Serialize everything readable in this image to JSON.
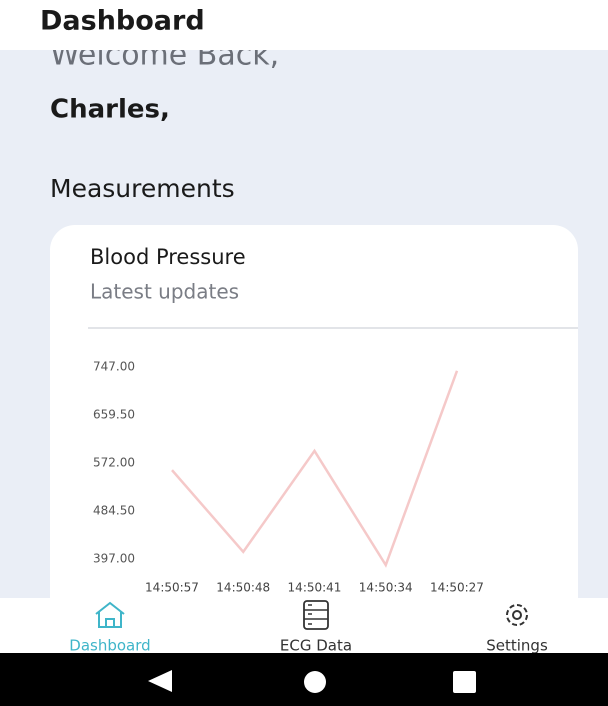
{
  "header": {
    "title": "Dashboard"
  },
  "welcome": {
    "greeting": "Welcome Back,",
    "name": "Charles,"
  },
  "section_title": "Measurements",
  "card": {
    "title": "Blood Pressure",
    "subtitle": "Latest updates"
  },
  "chart_data": {
    "type": "line",
    "categories": [
      "14:50:57",
      "14:50:48",
      "14:50:41",
      "14:50:34",
      "14:50:27"
    ],
    "values": [
      559,
      410,
      594,
      386,
      740
    ],
    "color": "#f5c9c9",
    "ylim": [
      397,
      747
    ],
    "yticks": [
      {
        "value": 397,
        "label": "397.00"
      },
      {
        "value": 484.5,
        "label": "484.50"
      },
      {
        "value": 572,
        "label": "572.00"
      },
      {
        "value": 659.5,
        "label": "659.50"
      },
      {
        "value": 747,
        "label": "747.00"
      }
    ],
    "grid": false
  },
  "nav": {
    "items": [
      "Dashboard",
      "ECG Data",
      "Settings"
    ]
  }
}
